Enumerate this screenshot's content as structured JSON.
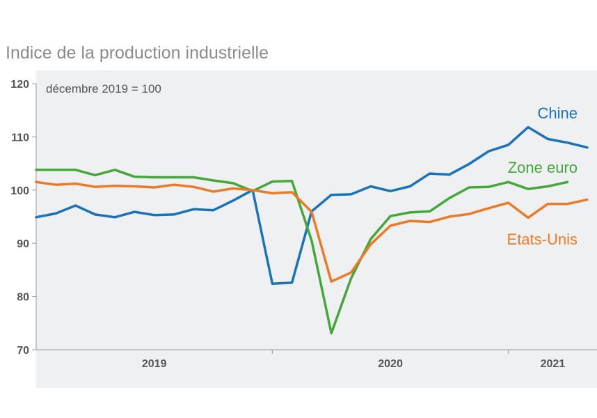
{
  "chart_data": {
    "type": "line",
    "title": "Indice de la production industrielle",
    "subtitle": "décembre 2019 = 100",
    "xlabel": "",
    "ylabel": "",
    "ylim": [
      70,
      120
    ],
    "yticks": [
      70,
      80,
      90,
      100,
      110,
      120
    ],
    "x_range_months": [
      0,
      28.5
    ],
    "x_periods": [
      {
        "label": "2019",
        "start": 0,
        "end": 12
      },
      {
        "label": "2020",
        "start": 12,
        "end": 24
      },
      {
        "label": "2021",
        "start": 24,
        "end": 28.5
      }
    ],
    "grid": false,
    "legend": "inline-right",
    "series": [
      {
        "name": "Chine",
        "color": "#1a72bb",
        "x": [
          0,
          1,
          2,
          3,
          4,
          5,
          6,
          7,
          8,
          9,
          10,
          11,
          12,
          13,
          14,
          15,
          16,
          17,
          18,
          19,
          20,
          21,
          22,
          23,
          24,
          25,
          26,
          27,
          28
        ],
        "values": [
          94.9,
          95.6,
          97.1,
          95.4,
          94.9,
          95.9,
          95.3,
          95.4,
          96.4,
          96.2,
          98.0,
          100.0,
          82.4,
          82.6,
          96.0,
          99.1,
          99.2,
          100.7,
          99.8,
          100.7,
          103.1,
          102.9,
          104.9,
          107.3,
          108.5,
          111.8,
          109.6,
          108.9,
          108.0
        ]
      },
      {
        "name": "Zone euro",
        "color": "#43a838",
        "x": [
          0,
          1,
          2,
          3,
          4,
          5,
          6,
          7,
          8,
          9,
          10,
          11,
          12,
          13,
          14,
          15,
          16,
          17,
          18,
          19,
          20,
          21,
          22,
          23,
          24,
          25,
          26,
          27
        ],
        "values": [
          103.8,
          103.8,
          103.8,
          102.8,
          103.8,
          102.5,
          102.4,
          102.4,
          102.4,
          101.8,
          101.3,
          99.8,
          101.6,
          101.7,
          90.5,
          73.1,
          83.4,
          90.8,
          95.1,
          95.8,
          96.0,
          98.5,
          100.5,
          100.6,
          101.5,
          100.2,
          100.7,
          101.5
        ]
      },
      {
        "name": "Etats-Unis",
        "color": "#ec7a25",
        "x": [
          0,
          1,
          2,
          3,
          4,
          5,
          6,
          7,
          8,
          9,
          10,
          11,
          12,
          13,
          14,
          15,
          16,
          17,
          18,
          19,
          20,
          21,
          22,
          23,
          24,
          25,
          26,
          27,
          28
        ],
        "values": [
          101.5,
          101.0,
          101.2,
          100.6,
          100.8,
          100.7,
          100.5,
          101.0,
          100.6,
          99.7,
          100.3,
          100.0,
          99.4,
          99.6,
          95.9,
          82.8,
          84.5,
          89.8,
          93.3,
          94.2,
          94.0,
          95.0,
          95.5,
          96.6,
          97.6,
          94.8,
          97.4,
          97.4,
          98.2
        ]
      }
    ]
  }
}
